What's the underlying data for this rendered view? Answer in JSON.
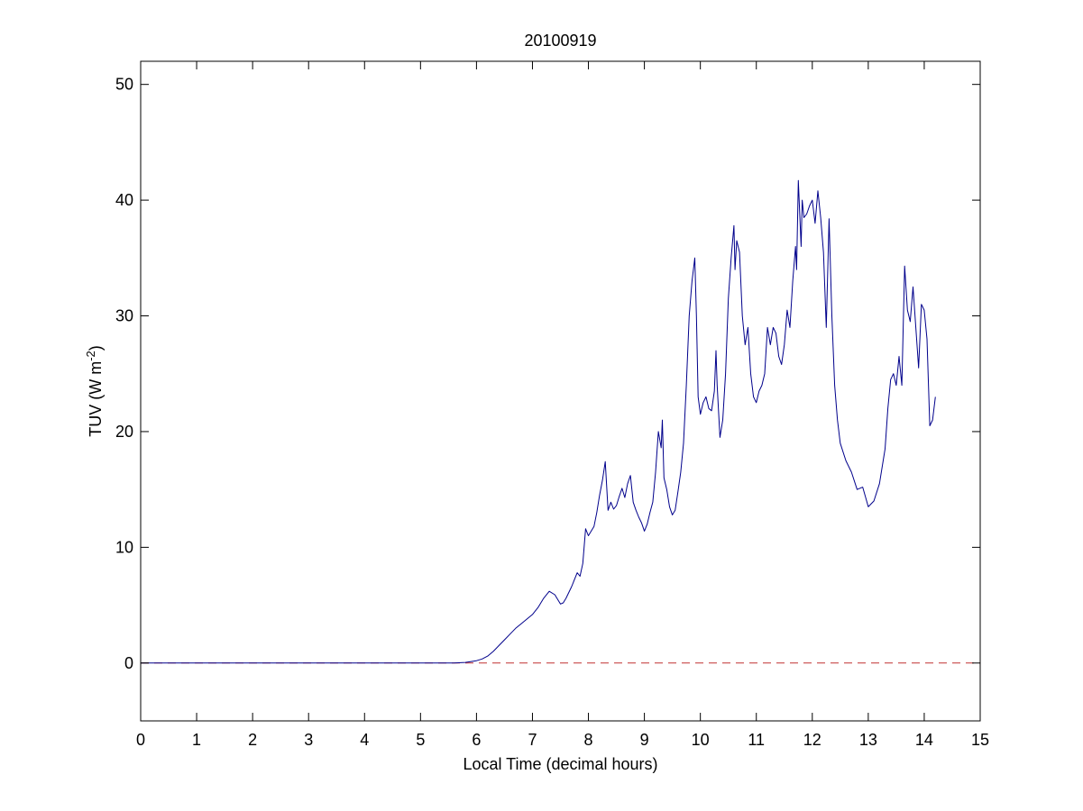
{
  "chart_data": {
    "type": "line",
    "title": "20100919",
    "xlabel": "Local Time (decimal hours)",
    "ylabel": {
      "main": "TUV (W m",
      "superscript": "-2",
      "close": ")"
    },
    "xlim": [
      0,
      15
    ],
    "ylim": [
      -5,
      52
    ],
    "xticks": [
      0,
      1,
      2,
      3,
      4,
      5,
      6,
      7,
      8,
      9,
      10,
      11,
      12,
      13,
      14,
      15
    ],
    "yticks": [
      0,
      10,
      20,
      30,
      40,
      50
    ],
    "grid": false,
    "reference_line": {
      "y": 0,
      "style": "dashed",
      "color": "#c03030"
    },
    "series": [
      {
        "color": "#00008b",
        "x": [
          0,
          5.6,
          5.8,
          6.0,
          6.1,
          6.2,
          6.3,
          6.4,
          6.5,
          6.6,
          6.7,
          6.8,
          6.9,
          7.0,
          7.1,
          7.2,
          7.3,
          7.4,
          7.5,
          7.55,
          7.6,
          7.7,
          7.8,
          7.85,
          7.9,
          7.95,
          8.0,
          8.05,
          8.1,
          8.15,
          8.2,
          8.25,
          8.3,
          8.35,
          8.4,
          8.45,
          8.5,
          8.55,
          8.6,
          8.65,
          8.7,
          8.75,
          8.8,
          8.85,
          8.9,
          8.95,
          9.0,
          9.05,
          9.1,
          9.15,
          9.2,
          9.25,
          9.3,
          9.32,
          9.35,
          9.4,
          9.45,
          9.5,
          9.55,
          9.6,
          9.65,
          9.7,
          9.75,
          9.8,
          9.85,
          9.9,
          9.93,
          9.96,
          10.0,
          10.05,
          10.1,
          10.15,
          10.2,
          10.25,
          10.28,
          10.3,
          10.35,
          10.4,
          10.45,
          10.5,
          10.55,
          10.6,
          10.62,
          10.65,
          10.7,
          10.75,
          10.8,
          10.85,
          10.9,
          10.95,
          11.0,
          11.05,
          11.1,
          11.15,
          11.2,
          11.25,
          11.3,
          11.35,
          11.4,
          11.45,
          11.5,
          11.55,
          11.6,
          11.65,
          11.7,
          11.72,
          11.75,
          11.8,
          11.82,
          11.85,
          11.9,
          11.95,
          12.0,
          12.05,
          12.1,
          12.15,
          12.2,
          12.25,
          12.3,
          12.35,
          12.4,
          12.45,
          12.5,
          12.6,
          12.7,
          12.8,
          12.9,
          13.0,
          13.1,
          13.2,
          13.3,
          13.35,
          13.4,
          13.45,
          13.5,
          13.55,
          13.6,
          13.65,
          13.7,
          13.75,
          13.8,
          13.85,
          13.9,
          13.95,
          14.0,
          14.05,
          14.1,
          14.15,
          14.2
        ],
        "y": [
          0,
          0,
          0.05,
          0.2,
          0.35,
          0.6,
          1.0,
          1.5,
          2.0,
          2.5,
          3.0,
          3.4,
          3.8,
          4.2,
          4.8,
          5.6,
          6.2,
          5.9,
          5.1,
          5.2,
          5.6,
          6.6,
          7.8,
          7.5,
          8.6,
          11.6,
          11.0,
          11.4,
          11.8,
          13.0,
          14.5,
          15.8,
          17.4,
          13.2,
          13.9,
          13.3,
          13.6,
          14.4,
          15.1,
          14.3,
          15.5,
          16.2,
          13.9,
          13.2,
          12.6,
          12.1,
          11.4,
          12.0,
          13.0,
          13.9,
          16.5,
          20.0,
          18.6,
          21.0,
          16.0,
          15.0,
          13.5,
          12.8,
          13.2,
          14.8,
          16.5,
          19.0,
          24.0,
          30.0,
          33.0,
          35.0,
          30.0,
          23.0,
          21.5,
          22.5,
          23.0,
          22.0,
          21.8,
          23.5,
          27.0,
          24.0,
          19.5,
          21.0,
          25.0,
          31.5,
          35.0,
          37.8,
          34.0,
          36.5,
          35.5,
          30.0,
          27.5,
          29.0,
          25.0,
          23.0,
          22.5,
          23.5,
          24.0,
          25.0,
          29.0,
          27.5,
          29.0,
          28.5,
          26.5,
          25.8,
          27.5,
          30.5,
          29.0,
          33.0,
          36.0,
          34.0,
          41.7,
          36.0,
          40.0,
          38.5,
          38.8,
          39.5,
          40.0,
          38.0,
          40.8,
          38.5,
          35.5,
          29.0,
          38.4,
          30.0,
          24.0,
          21.0,
          19.0,
          17.5,
          16.5,
          15.0,
          15.2,
          13.5,
          14.0,
          15.5,
          18.5,
          22.0,
          24.5,
          25.0,
          24.0,
          26.5,
          24.0,
          34.3,
          30.5,
          29.5,
          32.5,
          29.0,
          25.5,
          31.0,
          30.5,
          28.0,
          20.5,
          21.0,
          23.0
        ]
      }
    ]
  }
}
